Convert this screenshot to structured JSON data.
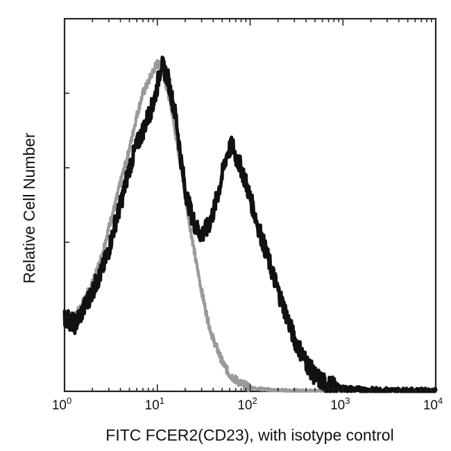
{
  "chart_data": {
    "type": "area",
    "title": "",
    "xlabel": "FITC FCER2(CD23), with isotype control",
    "ylabel": "Relative Cell Number",
    "xscale": "log",
    "xlim": [
      1,
      10000
    ],
    "ylim": [
      0,
      100
    ],
    "x_ticks": [
      {
        "base": "10",
        "exp": "0"
      },
      {
        "base": "10",
        "exp": "1"
      },
      {
        "base": "10",
        "exp": "2"
      },
      {
        "base": "10",
        "exp": "3"
      },
      {
        "base": "10",
        "exp": "4"
      }
    ],
    "y_tick_count": 5,
    "grid": false,
    "legend": "none",
    "series": [
      {
        "style": "gray dotted (isotype control)",
        "color": "#9a9a9a",
        "x": [
          1,
          1.3,
          1.6,
          2,
          2.5,
          3,
          3.5,
          4,
          5,
          6,
          7,
          8,
          9,
          10,
          11,
          12,
          14,
          16,
          18,
          20,
          23,
          26,
          30,
          35,
          40,
          50,
          60,
          80,
          100,
          150,
          200,
          400,
          1000
        ],
        "y": [
          20,
          20,
          24,
          29,
          36,
          44,
          50,
          56,
          65,
          74,
          80,
          83,
          86,
          88,
          87,
          84,
          77,
          68,
          60,
          52,
          43,
          35,
          27,
          19,
          14,
          8,
          4.5,
          2,
          1,
          0.5,
          0.3,
          0.1,
          0
        ]
      },
      {
        "style": "black solid (FCER2/CD23)",
        "color": "#111111",
        "x": [
          1,
          1.3,
          1.6,
          2,
          2.5,
          3,
          3.5,
          4,
          5,
          6,
          7,
          8,
          9,
          10,
          11,
          12,
          13,
          14,
          16,
          18,
          20,
          23,
          26,
          30,
          35,
          40,
          45,
          50,
          55,
          60,
          65,
          70,
          80,
          90,
          100,
          120,
          150,
          200,
          250,
          300,
          400,
          500,
          700,
          1000,
          2000,
          5000,
          10000
        ],
        "y": [
          20,
          18,
          22,
          27,
          32,
          38,
          45,
          50,
          60,
          66,
          70,
          74,
          77,
          82,
          88,
          86,
          84,
          80,
          73,
          62,
          54,
          48,
          44,
          42,
          44,
          48,
          53,
          58,
          63,
          65,
          66,
          63,
          60,
          56,
          52,
          45,
          37,
          27,
          20,
          14,
          8,
          4,
          1.5,
          0.7,
          0.3,
          0.1,
          0
        ]
      }
    ]
  }
}
